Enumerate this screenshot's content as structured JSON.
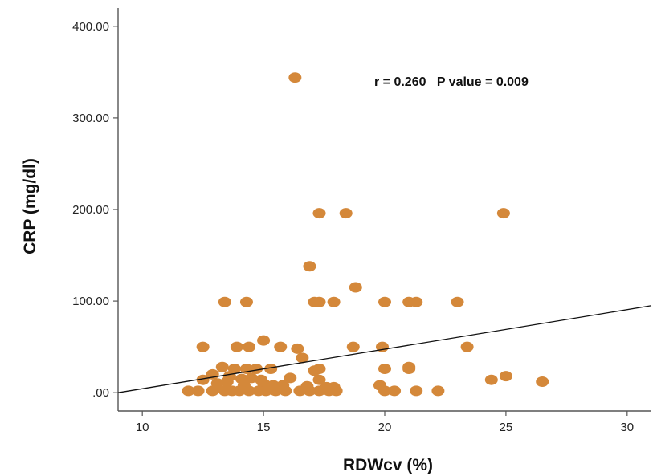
{
  "chart_data": {
    "type": "scatter",
    "xlabel": "RDWcv (%)",
    "ylabel": "CRP (mg/dl)",
    "xlim": [
      9,
      31
    ],
    "ylim": [
      -20,
      420
    ],
    "x_ticks": [
      10,
      15,
      20,
      25,
      30
    ],
    "x_tick_labels": [
      "10",
      "15",
      "20",
      "25",
      "30"
    ],
    "y_ticks": [
      0,
      100,
      200,
      300,
      400
    ],
    "y_tick_labels": [
      ".00",
      "100.00",
      "200.00",
      "300.00",
      "400.00"
    ],
    "grid": false,
    "legend": "none",
    "annotation": "r = 0.260   P value = 0.009",
    "marker_color": "#d4883a",
    "line_color": "#111111",
    "fit_line": {
      "x": [
        9,
        31
      ],
      "y": [
        0,
        95
      ]
    },
    "points": [
      [
        16.3,
        344
      ],
      [
        17.3,
        196
      ],
      [
        18.4,
        196
      ],
      [
        24.9,
        196
      ],
      [
        16.9,
        138
      ],
      [
        18.8,
        115
      ],
      [
        13.4,
        99
      ],
      [
        14.3,
        99
      ],
      [
        17.1,
        99
      ],
      [
        17.3,
        99
      ],
      [
        17.9,
        99
      ],
      [
        20.0,
        99
      ],
      [
        21.0,
        99
      ],
      [
        21.3,
        99
      ],
      [
        23.0,
        99
      ],
      [
        15.0,
        57
      ],
      [
        12.5,
        50
      ],
      [
        13.9,
        50
      ],
      [
        14.4,
        50
      ],
      [
        15.7,
        50
      ],
      [
        16.4,
        48
      ],
      [
        18.7,
        50
      ],
      [
        19.9,
        50
      ],
      [
        23.4,
        50
      ],
      [
        16.6,
        38
      ],
      [
        13.3,
        28
      ],
      [
        13.8,
        26
      ],
      [
        14.3,
        26
      ],
      [
        14.7,
        26
      ],
      [
        15.3,
        26
      ],
      [
        17.1,
        24
      ],
      [
        17.3,
        26
      ],
      [
        20.0,
        26
      ],
      [
        21.0,
        28
      ],
      [
        21.0,
        26
      ],
      [
        12.9,
        20
      ],
      [
        13.6,
        18
      ],
      [
        14.1,
        15
      ],
      [
        14.5,
        16
      ],
      [
        14.9,
        14
      ],
      [
        16.1,
        16
      ],
      [
        17.3,
        14
      ],
      [
        24.4,
        14
      ],
      [
        25.0,
        18
      ],
      [
        26.5,
        12
      ],
      [
        12.5,
        14
      ],
      [
        13.1,
        10
      ],
      [
        13.5,
        12
      ],
      [
        14.2,
        8
      ],
      [
        15.0,
        10
      ],
      [
        15.4,
        8
      ],
      [
        15.8,
        8
      ],
      [
        16.8,
        7
      ],
      [
        17.6,
        6
      ],
      [
        17.9,
        6
      ],
      [
        19.8,
        8
      ],
      [
        11.9,
        2
      ],
      [
        12.3,
        2
      ],
      [
        12.9,
        2
      ],
      [
        13.4,
        2
      ],
      [
        13.7,
        2
      ],
      [
        14.0,
        2
      ],
      [
        14.4,
        2
      ],
      [
        14.8,
        2
      ],
      [
        15.1,
        2
      ],
      [
        15.5,
        2
      ],
      [
        15.9,
        2
      ],
      [
        16.5,
        2
      ],
      [
        16.9,
        2
      ],
      [
        17.3,
        2
      ],
      [
        17.7,
        2
      ],
      [
        18.0,
        2
      ],
      [
        20.0,
        2
      ],
      [
        20.4,
        2
      ],
      [
        21.3,
        2
      ],
      [
        22.2,
        2
      ]
    ]
  }
}
